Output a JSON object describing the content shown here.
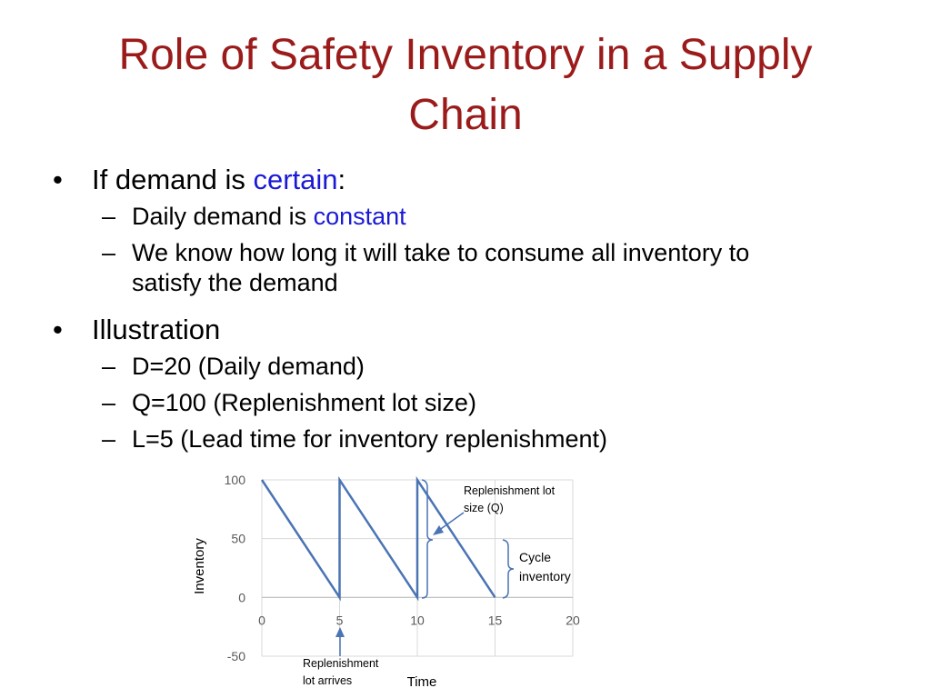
{
  "title": {
    "line1": "Role of Safety Inventory in a Supply",
    "line2": "Chain"
  },
  "bullets": {
    "b1": {
      "prefix": "If demand is ",
      "highlight": "certain",
      "suffix": ":"
    },
    "b1_sub1": {
      "prefix": "Daily demand is ",
      "highlight": "constant"
    },
    "b1_sub2": {
      "line1": "We know how long it will take to consume all inventory to",
      "line2": "satisfy the demand"
    },
    "b2": {
      "text": "Illustration"
    },
    "b2_sub1": {
      "text": "D=20 (Daily demand)"
    },
    "b2_sub2": {
      "text": "Q=100 (Replenishment lot size)"
    },
    "b2_sub3": {
      "text": "L=5 (Lead time for inventory replenishment)"
    },
    "bullet_char": "•",
    "dash_char": "–"
  },
  "chart_data": {
    "type": "line",
    "xlabel": "Time",
    "ylabel": "Inventory",
    "xlim": [
      0,
      20
    ],
    "ylim": [
      -50,
      100
    ],
    "xticks": [
      0,
      5,
      10,
      15,
      20
    ],
    "yticks": [
      -50,
      0,
      50,
      100
    ],
    "grid": true,
    "series": [
      {
        "x": [
          0,
          5,
          5,
          10,
          10,
          15
        ],
        "y": [
          100,
          0,
          100,
          0,
          100,
          0
        ]
      }
    ],
    "annotations": {
      "replenishment_lot_size": {
        "line1": "Replenishment lot",
        "line2": "size (Q)"
      },
      "cycle_inventory": {
        "line1": "Cycle",
        "line2": "inventory"
      },
      "lot_arrives": {
        "line1": "Replenishment",
        "line2": "lot arrives"
      }
    },
    "colors": {
      "line": "#4a74b4",
      "grid": "#d9d9d9",
      "axis_text": "#595959"
    }
  }
}
